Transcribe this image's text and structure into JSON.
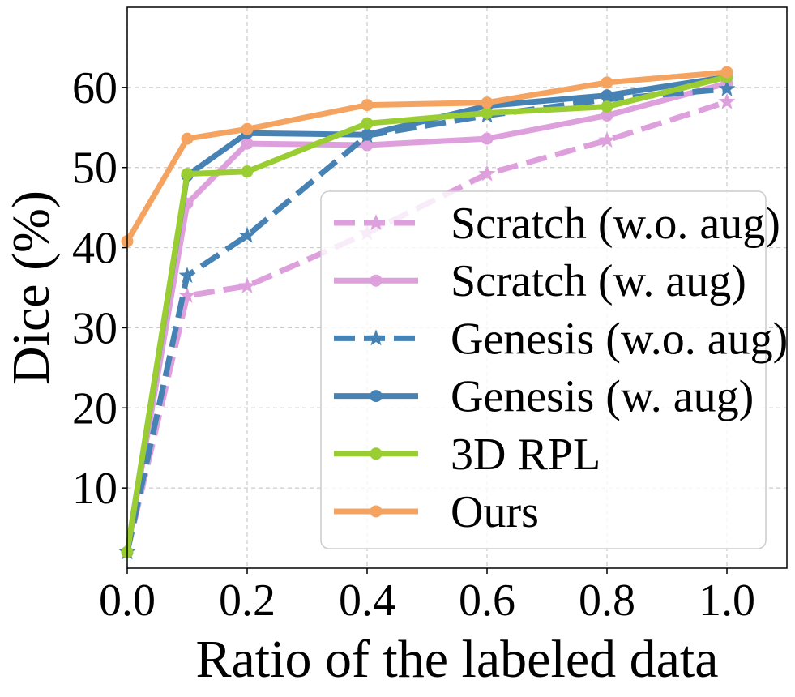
{
  "chart_data": {
    "type": "line",
    "xlabel": "Ratio of the labeled data",
    "ylabel": "Dice (%)",
    "xlim": [
      0.0,
      1.1
    ],
    "ylim": [
      0,
      70
    ],
    "xticks": [
      "0.0",
      "0.2",
      "0.4",
      "0.6",
      "0.8",
      "1.0"
    ],
    "yticks": [
      "10",
      "20",
      "30",
      "40",
      "50",
      "60"
    ],
    "grid": true,
    "legend_position": "lower-right",
    "x": [
      0.0,
      0.1,
      0.2,
      0.4,
      0.6,
      0.8,
      1.0
    ],
    "series": [
      {
        "name": "Scratch (w.o. aug)",
        "color": "#DDA0DD",
        "dashed": true,
        "marker": "star",
        "values": [
          2.0,
          34.0,
          35.2,
          41.8,
          49.2,
          53.4,
          58.2
        ]
      },
      {
        "name": "Scratch (w. aug)",
        "color": "#DDA0DD",
        "dashed": false,
        "marker": "circle",
        "values": [
          2.0,
          45.5,
          53.0,
          52.8,
          53.6,
          56.5,
          60.5
        ]
      },
      {
        "name": "Genesis (w.o. aug)",
        "color": "#4682B4",
        "dashed": true,
        "marker": "star",
        "values": [
          2.0,
          36.5,
          41.5,
          54.0,
          56.5,
          58.5,
          59.8
        ]
      },
      {
        "name": "Genesis (w. aug)",
        "color": "#4682B4",
        "dashed": false,
        "marker": "circle",
        "values": [
          2.0,
          49.0,
          54.3,
          54.1,
          57.7,
          59.0,
          61.3
        ]
      },
      {
        "name": "3D RPL",
        "color": "#9ACD32",
        "dashed": false,
        "marker": "circle",
        "values": [
          2.0,
          49.2,
          49.5,
          55.5,
          56.8,
          57.6,
          61.3
        ]
      },
      {
        "name": "Ours",
        "color": "#F4A460",
        "dashed": false,
        "marker": "circle",
        "values": [
          40.8,
          53.6,
          54.8,
          57.8,
          58.1,
          60.6,
          61.9
        ]
      }
    ]
  }
}
